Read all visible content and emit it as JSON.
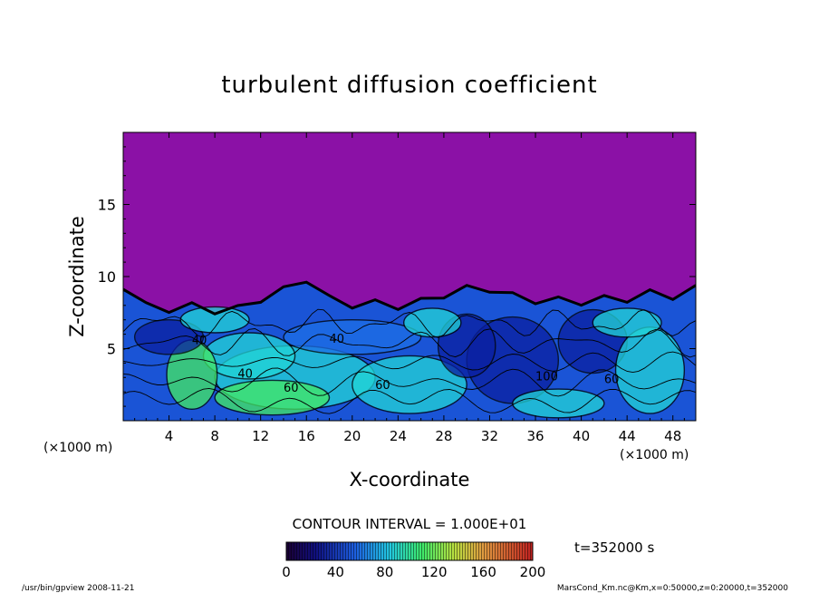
{
  "chart_data": {
    "type": "heatmap",
    "title": "turbulent diffusion coefficient",
    "xlabel": "X-coordinate",
    "ylabel": "Z-coordinate",
    "x_unit": "(×1000 m)",
    "y_unit": "(×1000 m)",
    "xlim": [
      0,
      50
    ],
    "ylim": [
      0,
      20
    ],
    "x_ticks": [
      "4",
      "8",
      "12",
      "16",
      "20",
      "24",
      "28",
      "32",
      "36",
      "40",
      "44",
      "48"
    ],
    "y_ticks": [
      "5",
      "10",
      "15"
    ],
    "contour_labels": [
      "40",
      "40",
      "40",
      "60",
      "60",
      "60",
      "100"
    ],
    "contour_interval_text": "CONTOUR INTERVAL = 1.000E+01",
    "time_text": "t=352000 s",
    "colorbar": {
      "range": [
        0,
        200
      ],
      "ticks": [
        "0",
        "40",
        "80",
        "120",
        "160",
        "200"
      ]
    },
    "profile": {
      "x": [
        0,
        2,
        4,
        6,
        8,
        10,
        12,
        14,
        16,
        18,
        20,
        22,
        24,
        26,
        28,
        30,
        32,
        34,
        36,
        38,
        40,
        42,
        44,
        46,
        48,
        50
      ],
      "top_z": [
        9.3,
        8.0,
        7.7,
        8.0,
        7.6,
        7.8,
        8.4,
        9.1,
        9.8,
        8.5,
        8.0,
        8.2,
        7.9,
        8.3,
        8.7,
        9.2,
        9.1,
        8.7,
        8.3,
        8.4,
        8.2,
        8.5,
        8.4,
        8.9,
        8.6,
        9.2
      ]
    },
    "colors": {
      "background": "#8b11a6",
      "low": "#0b1fa0",
      "mid": "#1d6fe6",
      "cyan": "#22d6d6",
      "green": "#44ea62"
    }
  },
  "footer": {
    "left": "/usr/bin/gpview   2008-11-21",
    "right": "MarsCond_Km.nc@Km,x=0:50000,z=0:20000,t=352000"
  }
}
